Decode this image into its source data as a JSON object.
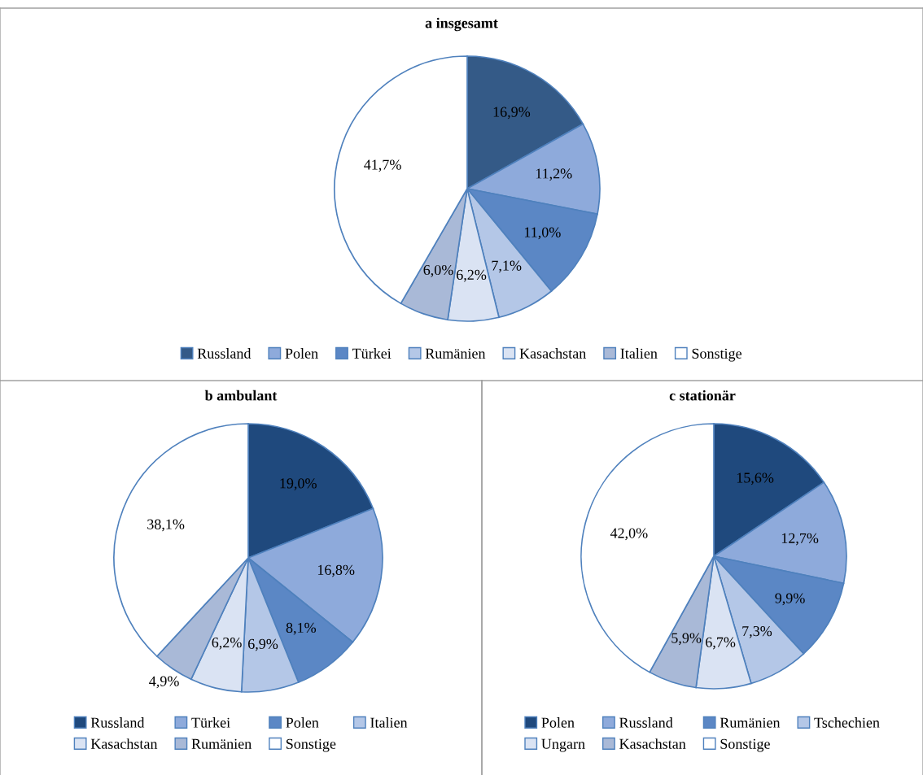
{
  "chart_data": [
    {
      "type": "pie",
      "title": "a insgesamt",
      "legend": "bottom",
      "categories": [
        "Russland",
        "Polen",
        "Türkei",
        "Rumänien",
        "Kasachstan",
        "Italien",
        "Sonstige"
      ],
      "values": [
        16.9,
        11.2,
        11.0,
        7.1,
        6.2,
        6.0,
        41.7
      ],
      "value_labels": [
        "16,9%",
        "11,2%",
        "11,0%",
        "7,1%",
        "6,2%",
        "6,0%",
        "41,7%"
      ],
      "colors": [
        "#345a87",
        "#8eaadb",
        "#5b87c5",
        "#b4c7e7",
        "#dae3f3",
        "#a9b9d7",
        "#ffffff"
      ]
    },
    {
      "type": "pie",
      "title": "b ambulant",
      "legend": "bottom",
      "categories": [
        "Russland",
        "Türkei",
        "Polen",
        "Italien",
        "Kasachstan",
        "Rumänien",
        "Sonstige"
      ],
      "values": [
        19.0,
        16.8,
        8.1,
        6.9,
        6.2,
        4.9,
        38.1
      ],
      "value_labels": [
        "19,0%",
        "16,8%",
        "8,1%",
        "6,9%",
        "6,2%",
        "4,9%",
        "38,1%"
      ],
      "colors": [
        "#1f497d",
        "#8eaadb",
        "#5b87c5",
        "#b4c7e7",
        "#dae3f3",
        "#a9b9d7",
        "#ffffff"
      ]
    },
    {
      "type": "pie",
      "title": "c stationär",
      "legend": "bottom",
      "categories": [
        "Polen",
        "Russland",
        "Rumänien",
        "Tschechien",
        "Ungarn",
        "Kasachstan",
        "Sonstige"
      ],
      "values": [
        15.6,
        12.7,
        9.9,
        7.3,
        6.7,
        5.9,
        42.0
      ],
      "value_labels": [
        "15,6%",
        "12,7%",
        "9,9%",
        "7,3%",
        "6,7%",
        "5,9%",
        "42,0%"
      ],
      "colors": [
        "#1f497d",
        "#8eaadb",
        "#5b87c5",
        "#b4c7e7",
        "#dae3f3",
        "#a9b9d7",
        "#ffffff"
      ]
    }
  ]
}
